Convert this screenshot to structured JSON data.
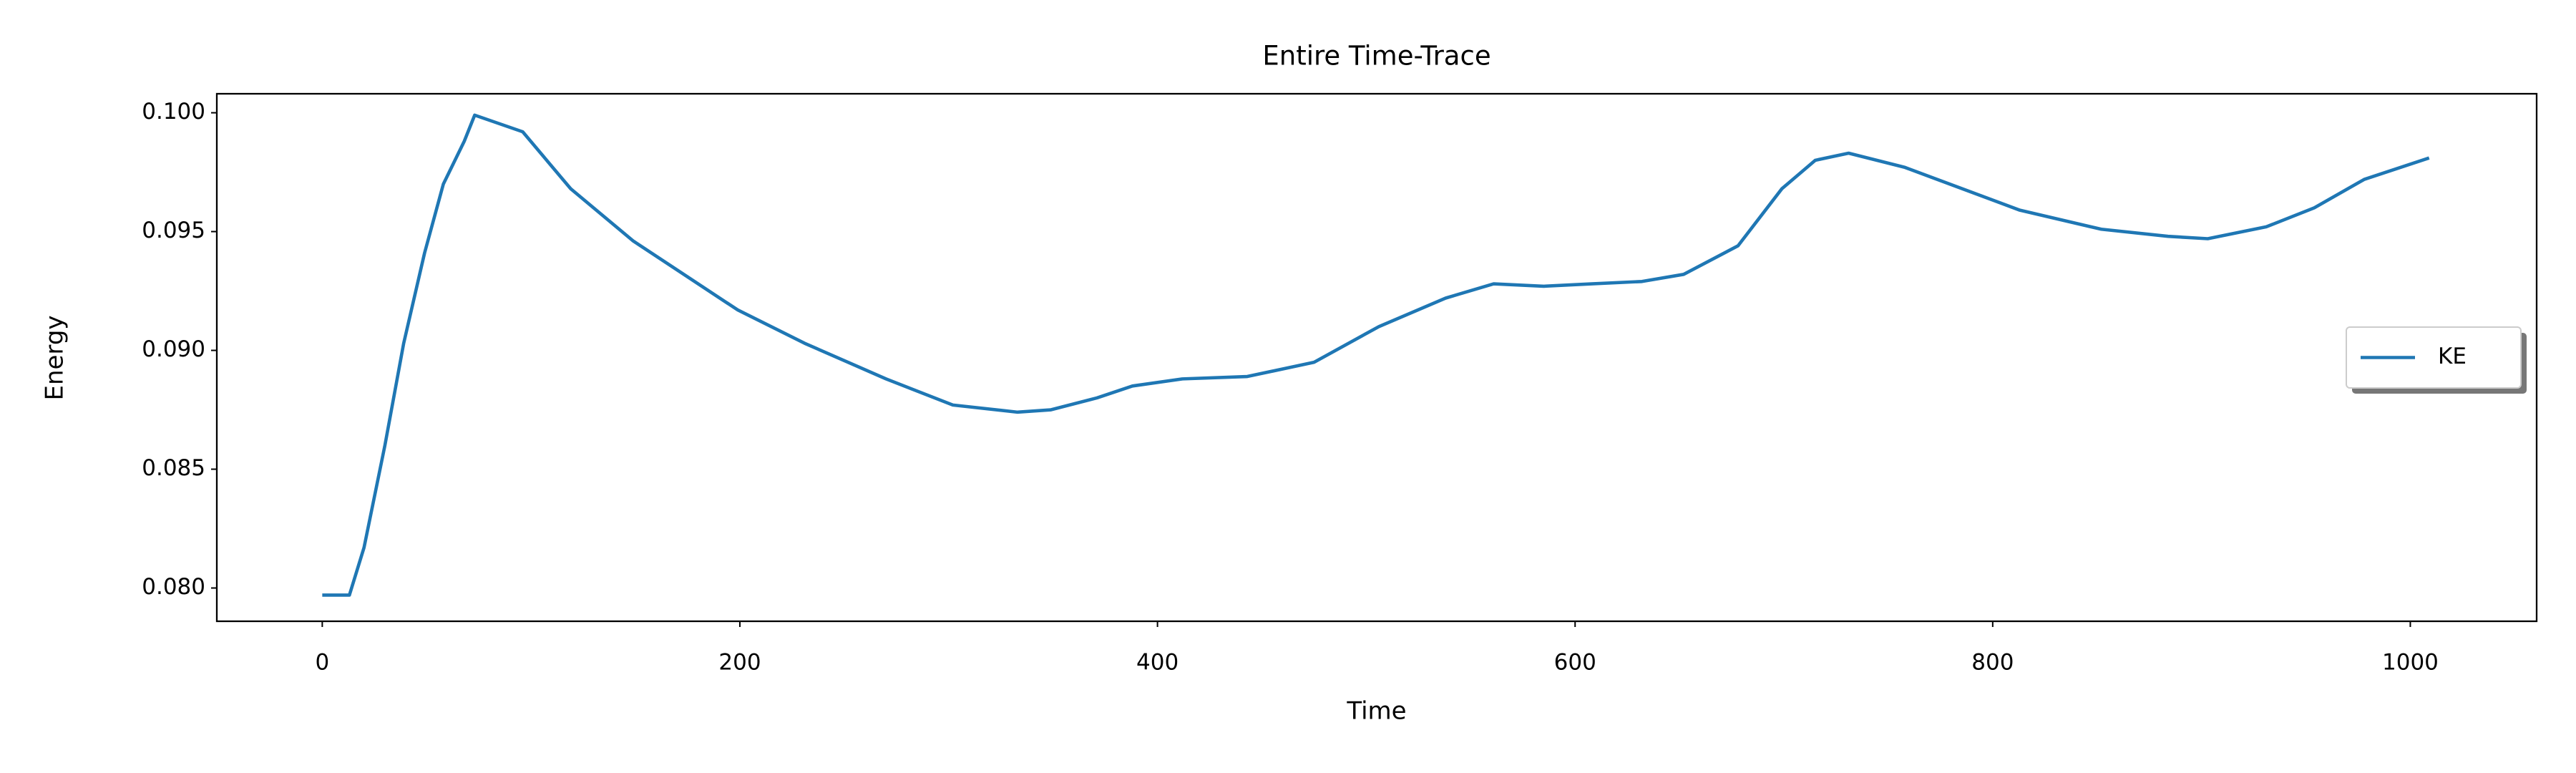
{
  "chart_data": {
    "type": "line",
    "title": "Entire Time-Trace",
    "x_label": "Time",
    "y_label": "Energy",
    "x": [
      0,
      13,
      20,
      30,
      39,
      49,
      58,
      68,
      73,
      96,
      119,
      149,
      199,
      231,
      270,
      302,
      333,
      349,
      371,
      388,
      412,
      443,
      475,
      506,
      538,
      561,
      585,
      608,
      632,
      652,
      678,
      699,
      715,
      731,
      758,
      813,
      852,
      884,
      903,
      931,
      954,
      978,
      1009
    ],
    "series": [
      {
        "name": "KE",
        "color": "#1f77b4",
        "values": [
          0.0797,
          0.0797,
          0.0817,
          0.086,
          0.0903,
          0.0941,
          0.097,
          0.0988,
          0.0999,
          0.0992,
          0.0968,
          0.0946,
          0.0917,
          0.0903,
          0.0888,
          0.0877,
          0.0874,
          0.0875,
          0.088,
          0.0885,
          0.0888,
          0.0889,
          0.0895,
          0.091,
          0.0922,
          0.0928,
          0.0927,
          0.0928,
          0.0929,
          0.0932,
          0.0944,
          0.0968,
          0.098,
          0.0983,
          0.0977,
          0.0959,
          0.0951,
          0.0948,
          0.0947,
          0.0952,
          0.096,
          0.0972,
          0.0981
        ]
      }
    ],
    "xlim": [
      -50.5,
      1060.5
    ],
    "ylim": [
      0.0786,
      0.1008
    ],
    "xticks": [
      0,
      200,
      400,
      600,
      800,
      1000
    ],
    "yticks": [
      {
        "value": 0.08,
        "label": "0.080"
      },
      0.085,
      {
        "value": 0.09,
        "label": "0.090"
      },
      0.095,
      {
        "value": 0.1,
        "label": "0.100"
      }
    ],
    "legend": "center right",
    "grid": false
  }
}
